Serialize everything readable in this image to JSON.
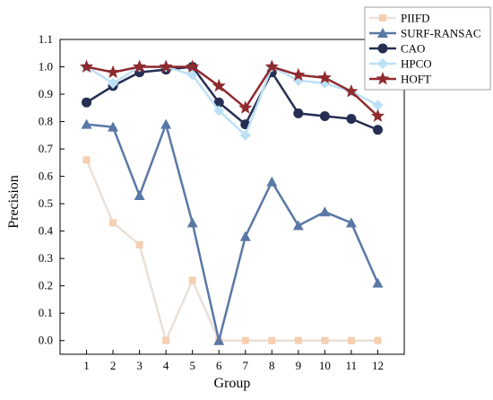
{
  "chart_data": {
    "type": "line",
    "title": "",
    "xlabel": "Group",
    "ylabel": "Precision",
    "x": [
      1,
      2,
      3,
      4,
      5,
      6,
      7,
      8,
      9,
      10,
      11,
      12
    ],
    "x_tick_labels": [
      "1",
      "2",
      "3",
      "4",
      "5",
      "6",
      "7",
      "8",
      "9",
      "10",
      "11",
      "12"
    ],
    "y_tick_labels": [
      "0.0",
      "0.1",
      "0.2",
      "0.3",
      "0.4",
      "0.5",
      "0.6",
      "0.7",
      "0.8",
      "0.9",
      "1.0",
      "1.1"
    ],
    "xlim": [
      0,
      13
    ],
    "ylim": [
      -0.05,
      1.1
    ],
    "grid": false,
    "legend": "top-right",
    "series": [
      {
        "name": "PIIFD",
        "marker": "square",
        "color": "#eae0d8",
        "marker_color": "#f6cfb0",
        "values": [
          0.66,
          0.43,
          0.35,
          0.0,
          0.22,
          0.0,
          0.0,
          0.0,
          0.0,
          0.0,
          0.0,
          0.0
        ]
      },
      {
        "name": "SURF-RANSAC",
        "marker": "triangle",
        "color": "#5a78a6",
        "marker_color": "#5a78a6",
        "values": [
          0.79,
          0.78,
          0.53,
          0.79,
          0.43,
          0.0,
          0.38,
          0.58,
          0.42,
          0.47,
          0.43,
          0.21
        ]
      },
      {
        "name": "CAO",
        "marker": "circle",
        "color": "#262f52",
        "marker_color": "#262f52",
        "values": [
          0.87,
          0.93,
          0.98,
          0.99,
          1.0,
          0.87,
          0.79,
          0.98,
          0.83,
          0.82,
          0.81,
          0.77
        ]
      },
      {
        "name": "HPCO",
        "marker": "diamond",
        "color": "#bde0f6",
        "marker_color": "#bde0f6",
        "values": [
          1.0,
          0.94,
          1.0,
          1.0,
          0.97,
          0.84,
          0.75,
          1.0,
          0.95,
          0.94,
          0.91,
          0.86
        ]
      },
      {
        "name": "HOFT",
        "marker": "star",
        "color": "#8e2b2f",
        "marker_color": "#8e2b2f",
        "values": [
          1.0,
          0.98,
          1.0,
          1.0,
          1.0,
          0.93,
          0.85,
          1.0,
          0.97,
          0.96,
          0.91,
          0.82
        ]
      }
    ]
  }
}
